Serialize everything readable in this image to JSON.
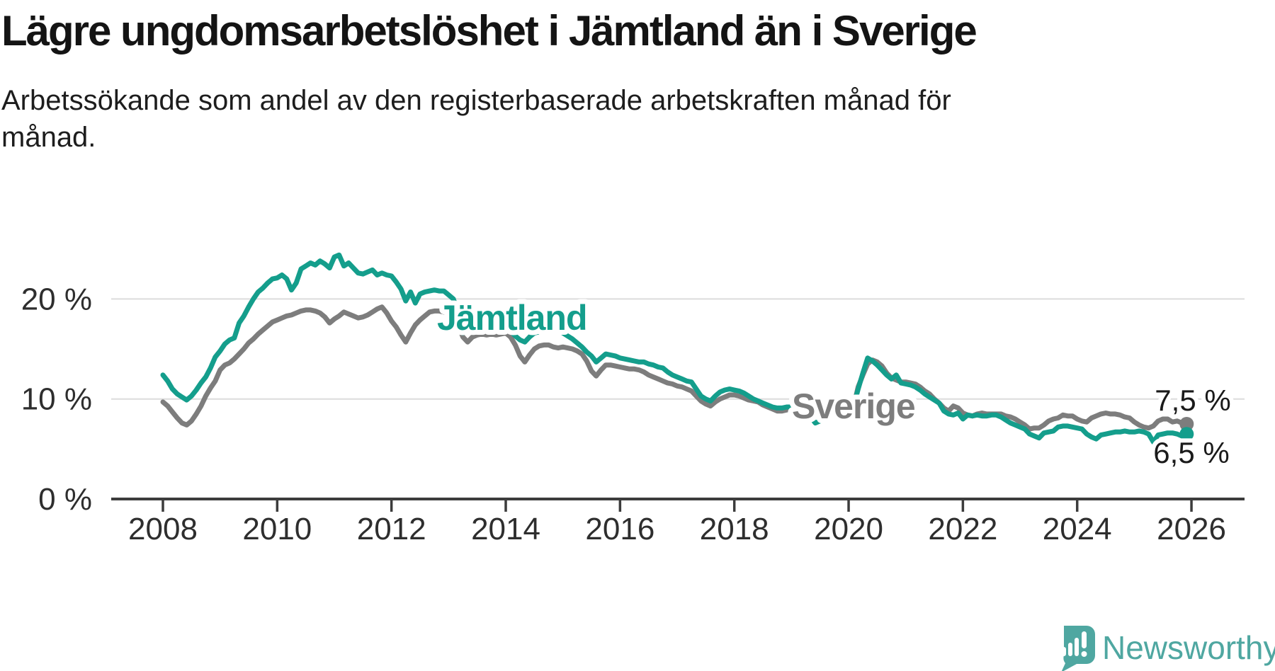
{
  "title": "Lägre ungdomsarbetslöshet i Jämtland än i Sverige",
  "subtitle": {
    "line1": "Arbetssökande som andel av den registerbaserade arbetskraften månad för",
    "line2": "månad."
  },
  "footer": {
    "brand": "Newsworthy"
  },
  "colors": {
    "jamtland": "#149E8C",
    "sverige": "#7D7D7D",
    "brand_teal": "#4FA7A1",
    "gridline": "#DCDCDC",
    "axis": "#3C3C3C"
  },
  "chart_data": {
    "type": "line",
    "title": "Lägre ungdomsarbetslöshet i Jämtland än i Sverige",
    "subtitle": "Arbetssökande som andel av den registerbaserade arbetskraften månad för månad.",
    "unit": "%",
    "frequency": "monthly",
    "x_start": "2008-01",
    "x_end": "2025-12",
    "grid": "horizontal",
    "legend": "inline-labels",
    "ylim": [
      0,
      26
    ],
    "x_axis": {
      "ticks": [
        2008,
        2010,
        2012,
        2014,
        2016,
        2018,
        2020,
        2022,
        2024,
        2026
      ]
    },
    "y_axis": {
      "ticks": [
        {
          "value": 0,
          "label": "0 %"
        },
        {
          "value": 10,
          "label": "10 %"
        },
        {
          "value": 20,
          "label": "20 %"
        }
      ]
    },
    "series": [
      {
        "name": "Sverige",
        "color": "#7D7D7D",
        "end_label": "7,5 %",
        "end_value": 7.5,
        "values": [
          9.7,
          9.3,
          8.7,
          8.1,
          7.6,
          7.4,
          7.8,
          8.5,
          9.3,
          10.3,
          11.1,
          11.8,
          12.9,
          13.4,
          13.6,
          14.0,
          14.5,
          15.0,
          15.6,
          16.0,
          16.5,
          16.9,
          17.3,
          17.7,
          17.9,
          18.1,
          18.3,
          18.4,
          18.6,
          18.8,
          18.9,
          18.9,
          18.8,
          18.6,
          18.2,
          17.6,
          18.0,
          18.3,
          18.7,
          18.5,
          18.3,
          18.1,
          18.2,
          18.4,
          18.7,
          19.0,
          19.2,
          18.6,
          17.8,
          17.2,
          16.4,
          15.7,
          16.6,
          17.4,
          17.9,
          18.3,
          18.7,
          18.8,
          18.8,
          18.7,
          18.6,
          18.4,
          17.4,
          16.2,
          15.7,
          16.2,
          16.4,
          16.5,
          16.4,
          16.5,
          16.4,
          16.5,
          16.6,
          16.2,
          15.4,
          14.3,
          13.7,
          14.4,
          15.0,
          15.3,
          15.4,
          15.4,
          15.2,
          15.1,
          15.2,
          15.1,
          15.0,
          14.8,
          14.5,
          13.8,
          12.8,
          12.3,
          12.9,
          13.4,
          13.4,
          13.3,
          13.2,
          13.1,
          13.0,
          13.0,
          12.9,
          12.7,
          12.4,
          12.2,
          12.0,
          11.8,
          11.6,
          11.5,
          11.3,
          11.2,
          11.0,
          10.8,
          10.3,
          9.8,
          9.5,
          9.3,
          9.7,
          10.0,
          10.2,
          10.4,
          10.4,
          10.3,
          10.1,
          9.9,
          9.8,
          9.7,
          9.4,
          9.2,
          9.0,
          8.8,
          8.8,
          8.9,
          9.0,
          9.0,
          8.9,
          8.8,
          8.6,
          8.4,
          8.3,
          8.4,
          8.6,
          8.7,
          8.8,
          8.9,
          9.0,
          9.2,
          11.2,
          12.4,
          13.5,
          13.9,
          13.7,
          13.3,
          12.6,
          12.1,
          11.9,
          11.7,
          11.7,
          11.6,
          11.5,
          11.2,
          10.8,
          10.5,
          10.0,
          9.6,
          9.1,
          8.8,
          9.3,
          9.1,
          8.6,
          8.4,
          8.3,
          8.5,
          8.6,
          8.5,
          8.5,
          8.5,
          8.5,
          8.3,
          8.2,
          8.0,
          7.7,
          7.4,
          7.0,
          7.1,
          7.1,
          7.4,
          7.8,
          8.0,
          8.1,
          8.4,
          8.3,
          8.3,
          8.0,
          7.8,
          7.7,
          8.1,
          8.3,
          8.5,
          8.6,
          8.5,
          8.5,
          8.4,
          8.2,
          8.1,
          7.7,
          7.4,
          7.2,
          7.1,
          7.3,
          7.8,
          8.0,
          8.0,
          7.7,
          7.8,
          7.6,
          7.5
        ]
      },
      {
        "name": "Jämtland",
        "color": "#149E8C",
        "end_label": "6,5 %",
        "end_value": 6.5,
        "values": [
          12.4,
          11.8,
          11.0,
          10.5,
          10.2,
          9.9,
          10.3,
          10.9,
          11.6,
          12.2,
          13.1,
          14.2,
          14.8,
          15.5,
          15.9,
          16.1,
          17.6,
          18.3,
          19.2,
          20.0,
          20.7,
          21.1,
          21.6,
          22.0,
          22.1,
          22.4,
          22.0,
          20.9,
          21.6,
          23.0,
          23.3,
          23.6,
          23.4,
          23.8,
          23.5,
          23.1,
          24.2,
          24.4,
          23.3,
          23.6,
          23.1,
          22.6,
          22.5,
          22.7,
          22.9,
          22.4,
          22.6,
          22.4,
          22.3,
          21.7,
          21.0,
          19.8,
          20.7,
          19.6,
          20.5,
          20.7,
          20.8,
          20.9,
          20.8,
          20.8,
          20.4,
          20.0,
          18.5,
          16.6,
          17.2,
          17.5,
          17.6,
          17.7,
          17.6,
          17.7,
          17.5,
          17.3,
          17.0,
          16.8,
          16.3,
          15.9,
          15.7,
          16.2,
          16.6,
          16.7,
          16.8,
          16.9,
          16.8,
          16.9,
          16.6,
          16.3,
          16.0,
          15.6,
          15.2,
          14.7,
          14.3,
          13.7,
          14.1,
          14.5,
          14.4,
          14.3,
          14.1,
          14.0,
          13.9,
          13.8,
          13.7,
          13.7,
          13.5,
          13.4,
          13.2,
          13.1,
          12.7,
          12.4,
          12.2,
          12.0,
          11.8,
          11.7,
          11.0,
          10.3,
          10.0,
          9.8,
          10.3,
          10.7,
          10.9,
          11.0,
          10.9,
          10.8,
          10.6,
          10.3,
          10.0,
          9.8,
          9.6,
          9.4,
          9.2,
          9.1,
          9.1,
          9.2,
          9.2,
          9.2,
          9.1,
          8.9,
          8.2,
          7.6,
          7.8,
          8.1,
          8.4,
          8.6,
          8.7,
          8.8,
          8.9,
          9.2,
          11.0,
          12.6,
          14.1,
          13.8,
          13.4,
          12.9,
          12.4,
          12.0,
          12.4,
          11.6,
          11.5,
          11.4,
          11.2,
          10.9,
          10.5,
          10.2,
          9.9,
          9.6,
          8.8,
          8.5,
          8.4,
          8.6,
          8.0,
          8.4,
          8.3,
          8.4,
          8.3,
          8.3,
          8.4,
          8.4,
          8.2,
          7.9,
          7.6,
          7.4,
          7.2,
          7.0,
          6.5,
          6.3,
          6.1,
          6.6,
          6.7,
          6.8,
          7.2,
          7.3,
          7.3,
          7.2,
          7.1,
          7.0,
          6.5,
          6.2,
          6.0,
          6.4,
          6.5,
          6.6,
          6.7,
          6.7,
          6.8,
          6.7,
          6.7,
          6.8,
          6.7,
          6.5,
          5.7,
          6.4,
          6.5,
          6.6,
          6.6,
          6.5,
          6.3,
          6.5
        ]
      }
    ]
  }
}
